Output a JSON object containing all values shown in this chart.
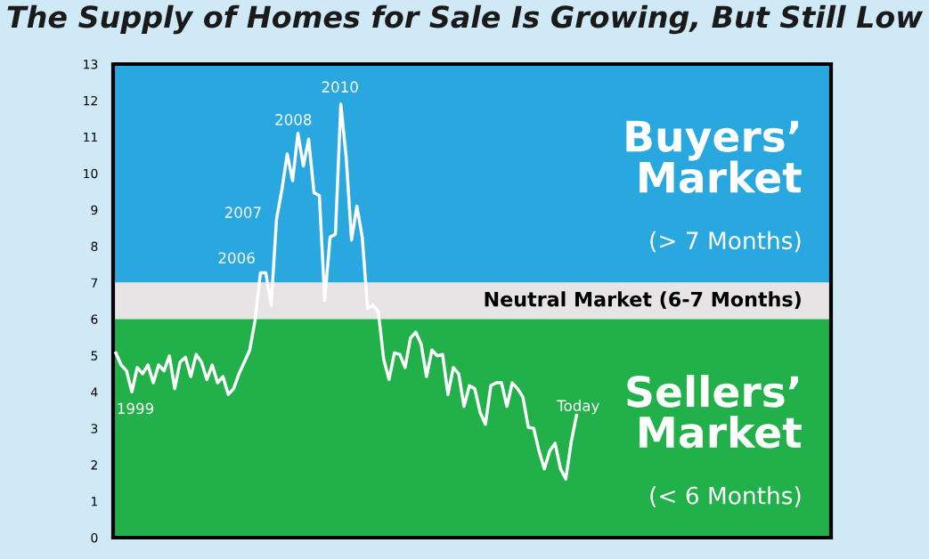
{
  "chart_data": {
    "type": "line",
    "title": "The Supply of Homes for Sale Is Growing, But Still Low",
    "categories": [
      null,
      null,
      null,
      null,
      null,
      null,
      null,
      null,
      null,
      null,
      null,
      null,
      null,
      null,
      null,
      null,
      null,
      null,
      null,
      null,
      null,
      null,
      null,
      null,
      null,
      null,
      null,
      null,
      null,
      null,
      null,
      null,
      null,
      null,
      null,
      null,
      null,
      null,
      null,
      null,
      null,
      null,
      null,
      null,
      null,
      null,
      null,
      null,
      null,
      null,
      null,
      null,
      null,
      null,
      null,
      null,
      null,
      null,
      null,
      null,
      null,
      null,
      null,
      null,
      null,
      null,
      null,
      null,
      null,
      null,
      null,
      null,
      null,
      null,
      null,
      null,
      null,
      null,
      null,
      null,
      null,
      null,
      null,
      null,
      null,
      null,
      null,
      null,
      null,
      null,
      null,
      null,
      null,
      null,
      null,
      null,
      null,
      null,
      null,
      null,
      null,
      null,
      null,
      null,
      null,
      null,
      null,
      null,
      null,
      null,
      null,
      null,
      null,
      null,
      null,
      null,
      null,
      null,
      null,
      null,
      null,
      null,
      null,
      null,
      null,
      null,
      null,
      null,
      null,
      null,
      null,
      null,
      null,
      null
    ],
    "series": [
      {
        "color": "#ffffff",
        "values": [
          5.07,
          4.74,
          4.58,
          4.0,
          4.67,
          4.5,
          4.74,
          4.25,
          4.74,
          4.58,
          4.99,
          4.09,
          4.82,
          4.95,
          4.42,
          5.03,
          4.82,
          4.34,
          4.74,
          4.25,
          4.42,
          3.93,
          4.09,
          4.5,
          4.82,
          5.15,
          5.97,
          7.27,
          7.27,
          6.38,
          8.74,
          9.55,
          10.53,
          9.8,
          11.1,
          10.2,
          10.94,
          9.47,
          9.39,
          6.5,
          8.25,
          8.33,
          11.9,
          10.45,
          8.17,
          9.1,
          8.25,
          6.29,
          6.38,
          6.21,
          4.9,
          4.34,
          5.07,
          5.03,
          4.67,
          5.48,
          5.64,
          5.31,
          4.42,
          5.15,
          4.99,
          5.03,
          3.93,
          4.67,
          4.5,
          3.6,
          4.17,
          4.09,
          3.44,
          3.11,
          4.17,
          4.25,
          4.25,
          3.6,
          4.25,
          4.09,
          3.85,
          3.03,
          3.0,
          2.38,
          1.89,
          2.38,
          2.59,
          1.89,
          1.61,
          2.62,
          3.36,
          null,
          null,
          null,
          null,
          null,
          null,
          null,
          null,
          null,
          null,
          null,
          null,
          null,
          null,
          null,
          null,
          null,
          null,
          null,
          null,
          null,
          null,
          null,
          null,
          null,
          null,
          null,
          null,
          null,
          null,
          null,
          null,
          null,
          null,
          null,
          null,
          null,
          null,
          null,
          null,
          null,
          null,
          null,
          null,
          null,
          null,
          null
        ]
      }
    ],
    "ylim": [
      0,
      13
    ],
    "yticks": [
      0,
      1,
      2,
      3,
      4,
      5,
      6,
      7,
      8,
      9,
      10,
      11,
      12,
      13
    ],
    "tick_labels": "y",
    "bands": [
      {
        "axis": "y",
        "from": 7,
        "to": 13,
        "color": "#29a8e0",
        "label": "Buyers’\nMarket\n(> 7 Months)"
      },
      {
        "axis": "y",
        "from": 6,
        "to": 7,
        "color": "#e6e4e4",
        "label": "Neutral Market (6-7 Months)"
      },
      {
        "axis": "y",
        "from": 0,
        "to": 6,
        "color": "#22b04b",
        "label": "Sellers’\nMarket\n(< 6 Months)"
      }
    ],
    "annotations": [
      "1999",
      "2006",
      "2007",
      "2008",
      "2010",
      "Today"
    ]
  }
}
